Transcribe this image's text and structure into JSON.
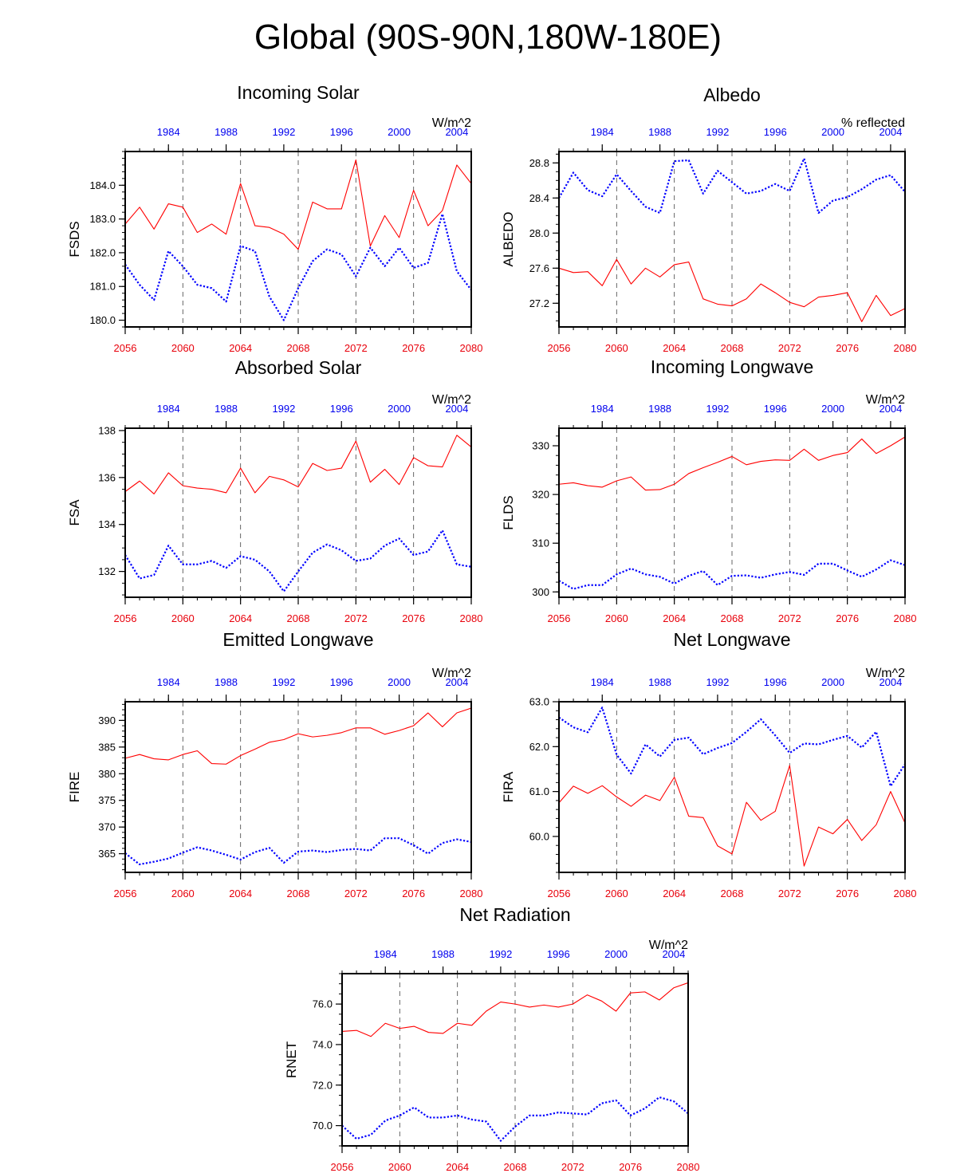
{
  "page": {
    "title": "Global (90S-90N,180W-180E)"
  },
  "style": {
    "case1_color": "#ff0000",
    "case2_color": "#0000ff",
    "bottom_tick_color": "#ff0000",
    "top_tick_color": "#0000ee"
  },
  "chart_data": [
    {
      "id": "incoming-solar",
      "type": "line",
      "title": "Incoming Solar",
      "ylabel": "FSDS",
      "units": "W/m^2",
      "ylim": [
        179.8,
        185.0
      ],
      "yticks": [
        180.0,
        181.0,
        182.0,
        183.0,
        184.0
      ],
      "ytick_labels": [
        "180.0",
        "181.0",
        "182.0",
        "183.0",
        "184.0"
      ],
      "yminor_step": 0.2,
      "grid_x": [
        2060,
        2064,
        2068,
        2072,
        2076
      ],
      "x_bottom": [
        2056,
        2057,
        2058,
        2059,
        2060,
        2061,
        2062,
        2063,
        2064,
        2065,
        2066,
        2067,
        2068,
        2069,
        2070,
        2071,
        2072,
        2073,
        2074,
        2075,
        2076,
        2077,
        2078,
        2079,
        2080
      ],
      "bottom_ticks": [
        2056,
        2060,
        2064,
        2068,
        2072,
        2076,
        2080
      ],
      "top_tick_labels": [
        "1984",
        "1988",
        "1992",
        "1996",
        "2000",
        "2004"
      ],
      "top_tick_positions": [
        2059,
        2063,
        2067,
        2071,
        2075,
        2079
      ],
      "series": [
        {
          "values": [
            182.85,
            183.35,
            182.7,
            183.45,
            183.35,
            182.6,
            182.85,
            182.55,
            184.05,
            182.8,
            182.75,
            182.55,
            182.1,
            183.5,
            183.3,
            183.3,
            184.75,
            182.2,
            183.1,
            182.45,
            183.85,
            182.8,
            183.25,
            184.6,
            184.05
          ]
        },
        {
          "values": [
            181.65,
            181.05,
            180.6,
            182.05,
            181.6,
            181.05,
            180.95,
            180.55,
            182.2,
            182.05,
            180.7,
            180.0,
            180.95,
            181.75,
            182.1,
            181.95,
            181.3,
            182.15,
            181.6,
            182.15,
            181.55,
            181.7,
            183.15,
            181.45,
            180.9
          ]
        }
      ]
    },
    {
      "id": "albedo",
      "type": "line",
      "title": "Albedo",
      "ylabel": "ALBEDO",
      "units": "% reflected",
      "ylim": [
        26.93,
        28.93
      ],
      "yticks": [
        27.2,
        27.6,
        28.0,
        28.4,
        28.8
      ],
      "ytick_labels": [
        "27.2",
        "27.6",
        "28.0",
        "28.4",
        "28.8"
      ],
      "yminor_step": 0.1,
      "grid_x": [
        2060,
        2064,
        2068,
        2072,
        2076
      ],
      "x_bottom": [
        2056,
        2057,
        2058,
        2059,
        2060,
        2061,
        2062,
        2063,
        2064,
        2065,
        2066,
        2067,
        2068,
        2069,
        2070,
        2071,
        2072,
        2073,
        2074,
        2075,
        2076,
        2077,
        2078,
        2079,
        2080
      ],
      "bottom_ticks": [
        2056,
        2060,
        2064,
        2068,
        2072,
        2076,
        2080
      ],
      "top_tick_labels": [
        "1984",
        "1988",
        "1992",
        "1996",
        "2000",
        "2004"
      ],
      "top_tick_positions": [
        2059,
        2063,
        2067,
        2071,
        2075,
        2079
      ],
      "series": [
        {
          "values": [
            27.6,
            27.55,
            27.56,
            27.4,
            27.7,
            27.42,
            27.6,
            27.5,
            27.64,
            27.67,
            27.25,
            27.19,
            27.17,
            27.25,
            27.42,
            27.32,
            27.21,
            27.16,
            27.27,
            27.29,
            27.32,
            26.99,
            27.29,
            27.06,
            27.14
          ]
        },
        {
          "values": [
            28.4,
            28.69,
            28.49,
            28.42,
            28.67,
            28.48,
            28.3,
            28.23,
            28.82,
            28.83,
            28.45,
            28.71,
            28.58,
            28.45,
            28.48,
            28.56,
            28.48,
            28.85,
            28.23,
            28.37,
            28.41,
            28.5,
            28.61,
            28.66,
            28.47
          ]
        }
      ]
    },
    {
      "id": "absorbed-solar",
      "type": "line",
      "title": "Absorbed Solar",
      "ylabel": "FSA",
      "units": "W/m^2",
      "ylim": [
        130.9,
        138.1
      ],
      "yticks": [
        132,
        134,
        136,
        138
      ],
      "ytick_labels": [
        "132",
        "134",
        "136",
        "138"
      ],
      "yminor_step": 0.5,
      "grid_x": [
        2060,
        2064,
        2068,
        2072,
        2076
      ],
      "x_bottom": [
        2056,
        2057,
        2058,
        2059,
        2060,
        2061,
        2062,
        2063,
        2064,
        2065,
        2066,
        2067,
        2068,
        2069,
        2070,
        2071,
        2072,
        2073,
        2074,
        2075,
        2076,
        2077,
        2078,
        2079,
        2080
      ],
      "bottom_ticks": [
        2056,
        2060,
        2064,
        2068,
        2072,
        2076,
        2080
      ],
      "top_tick_labels": [
        "1984",
        "1988",
        "1992",
        "1996",
        "2000",
        "2004"
      ],
      "top_tick_positions": [
        2059,
        2063,
        2067,
        2071,
        2075,
        2079
      ],
      "series": [
        {
          "values": [
            135.4,
            135.85,
            135.3,
            136.2,
            135.65,
            135.55,
            135.5,
            135.35,
            136.4,
            135.35,
            136.05,
            135.9,
            135.6,
            136.6,
            136.3,
            136.4,
            137.55,
            135.8,
            136.35,
            135.7,
            136.85,
            136.5,
            136.45,
            137.8,
            137.3
          ]
        },
        {
          "values": [
            132.7,
            131.7,
            131.85,
            133.1,
            132.3,
            132.3,
            132.45,
            132.15,
            132.65,
            132.5,
            132.0,
            131.15,
            132.0,
            132.8,
            133.15,
            132.9,
            132.45,
            132.55,
            133.1,
            133.4,
            132.7,
            132.85,
            133.75,
            132.3,
            132.2
          ]
        }
      ]
    },
    {
      "id": "incoming-longwave",
      "type": "line",
      "title": "Incoming Longwave",
      "ylabel": "FLDS",
      "units": "W/m^2",
      "ylim": [
        298.9,
        333.6
      ],
      "yticks": [
        300,
        310,
        320,
        330
      ],
      "ytick_labels": [
        "300",
        "310",
        "320",
        "330"
      ],
      "yminor_step": 2,
      "grid_x": [
        2060,
        2064,
        2068,
        2072,
        2076
      ],
      "x_bottom": [
        2056,
        2057,
        2058,
        2059,
        2060,
        2061,
        2062,
        2063,
        2064,
        2065,
        2066,
        2067,
        2068,
        2069,
        2070,
        2071,
        2072,
        2073,
        2074,
        2075,
        2076,
        2077,
        2078,
        2079,
        2080
      ],
      "bottom_ticks": [
        2056,
        2060,
        2064,
        2068,
        2072,
        2076,
        2080
      ],
      "top_tick_labels": [
        "1984",
        "1988",
        "1992",
        "1996",
        "2000",
        "2004"
      ],
      "top_tick_positions": [
        2059,
        2063,
        2067,
        2071,
        2075,
        2079
      ],
      "series": [
        {
          "values": [
            322.1,
            322.4,
            321.8,
            321.5,
            322.8,
            323.6,
            320.9,
            321.0,
            322.1,
            324.3,
            325.5,
            326.6,
            327.8,
            326.1,
            326.8,
            327.1,
            327.0,
            329.3,
            327.0,
            328.0,
            328.6,
            331.4,
            328.4,
            330.0,
            331.8
          ]
        },
        {
          "values": [
            302.3,
            300.6,
            301.4,
            301.4,
            303.6,
            304.8,
            303.6,
            303.1,
            301.7,
            303.3,
            304.3,
            301.4,
            303.3,
            303.4,
            302.9,
            303.6,
            304.1,
            303.5,
            305.8,
            305.8,
            304.4,
            303.1,
            304.6,
            306.5,
            305.5
          ]
        }
      ]
    },
    {
      "id": "emitted-longwave",
      "type": "line",
      "title": "Emitted Longwave",
      "ylabel": "FIRE",
      "units": "W/m^2",
      "ylim": [
        361.5,
        393.5
      ],
      "yticks": [
        365,
        370,
        375,
        380,
        385,
        390
      ],
      "ytick_labels": [
        "365",
        "370",
        "375",
        "380",
        "385",
        "390"
      ],
      "yminor_step": 1,
      "grid_x": [
        2060,
        2064,
        2068,
        2072,
        2076
      ],
      "x_bottom": [
        2056,
        2057,
        2058,
        2059,
        2060,
        2061,
        2062,
        2063,
        2064,
        2065,
        2066,
        2067,
        2068,
        2069,
        2070,
        2071,
        2072,
        2073,
        2074,
        2075,
        2076,
        2077,
        2078,
        2079,
        2080
      ],
      "bottom_ticks": [
        2056,
        2060,
        2064,
        2068,
        2072,
        2076,
        2080
      ],
      "top_tick_labels": [
        "1984",
        "1988",
        "1992",
        "1996",
        "2000",
        "2004"
      ],
      "top_tick_positions": [
        2059,
        2063,
        2067,
        2071,
        2075,
        2079
      ],
      "series": [
        {
          "values": [
            382.9,
            383.6,
            382.8,
            382.6,
            383.6,
            384.3,
            381.9,
            381.8,
            383.4,
            384.6,
            385.9,
            386.4,
            387.5,
            386.9,
            387.2,
            387.7,
            388.6,
            388.6,
            387.4,
            388.1,
            389.0,
            391.4,
            388.8,
            391.4,
            392.3
          ]
        },
        {
          "values": [
            365.1,
            363.0,
            363.5,
            364.1,
            365.2,
            366.2,
            365.6,
            364.8,
            363.9,
            365.3,
            366.1,
            363.3,
            365.4,
            365.6,
            365.3,
            365.7,
            365.9,
            365.6,
            367.9,
            367.9,
            366.6,
            365.0,
            367.0,
            367.7,
            367.2
          ]
        }
      ]
    },
    {
      "id": "net-longwave",
      "type": "line",
      "title": "Net Longwave",
      "ylabel": "FIRA",
      "units": "W/m^2",
      "ylim": [
        59.2,
        63.0
      ],
      "yticks": [
        60.0,
        61.0,
        62.0,
        63.0
      ],
      "ytick_labels": [
        "60.0",
        "61.0",
        "62.0",
        "63.0"
      ],
      "yminor_step": 0.2,
      "grid_x": [
        2060,
        2064,
        2068,
        2072,
        2076
      ],
      "x_bottom": [
        2056,
        2057,
        2058,
        2059,
        2060,
        2061,
        2062,
        2063,
        2064,
        2065,
        2066,
        2067,
        2068,
        2069,
        2070,
        2071,
        2072,
        2073,
        2074,
        2075,
        2076,
        2077,
        2078,
        2079,
        2080
      ],
      "bottom_ticks": [
        2056,
        2060,
        2064,
        2068,
        2072,
        2076,
        2080
      ],
      "top_tick_labels": [
        "1984",
        "1988",
        "1992",
        "1996",
        "2000",
        "2004"
      ],
      "top_tick_positions": [
        2059,
        2063,
        2067,
        2071,
        2075,
        2079
      ],
      "series": [
        {
          "values": [
            60.75,
            61.12,
            60.96,
            61.13,
            60.88,
            60.67,
            60.92,
            60.8,
            61.32,
            60.45,
            60.42,
            59.79,
            59.61,
            60.76,
            60.36,
            60.56,
            61.58,
            59.34,
            60.21,
            60.06,
            60.38,
            59.91,
            60.26,
            61.0,
            60.3
          ]
        },
        {
          "values": [
            62.65,
            62.43,
            62.32,
            62.87,
            61.82,
            61.4,
            62.05,
            61.78,
            62.15,
            62.2,
            61.83,
            61.97,
            62.08,
            62.33,
            62.61,
            62.25,
            61.86,
            62.07,
            62.05,
            62.15,
            62.24,
            61.98,
            62.33,
            61.12,
            61.61
          ]
        }
      ]
    },
    {
      "id": "net-radiation",
      "type": "line",
      "title": "Net Radiation",
      "ylabel": "RNET",
      "units": "W/m^2",
      "ylim": [
        69.0,
        77.5
      ],
      "yticks": [
        70.0,
        72.0,
        74.0,
        76.0
      ],
      "ytick_labels": [
        "70.0",
        "72.0",
        "74.0",
        "76.0"
      ],
      "yminor_step": 0.5,
      "grid_x": [
        2060,
        2064,
        2068,
        2072,
        2076
      ],
      "x_bottom": [
        2056,
        2057,
        2058,
        2059,
        2060,
        2061,
        2062,
        2063,
        2064,
        2065,
        2066,
        2067,
        2068,
        2069,
        2070,
        2071,
        2072,
        2073,
        2074,
        2075,
        2076,
        2077,
        2078,
        2079,
        2080
      ],
      "bottom_ticks": [
        2056,
        2060,
        2064,
        2068,
        2072,
        2076,
        2080
      ],
      "top_tick_labels": [
        "1984",
        "1988",
        "1992",
        "1996",
        "2000",
        "2004"
      ],
      "top_tick_positions": [
        2059,
        2063,
        2067,
        2071,
        2075,
        2079
      ],
      "series": [
        {
          "values": [
            74.65,
            74.7,
            74.4,
            75.05,
            74.8,
            74.9,
            74.6,
            74.55,
            75.05,
            74.95,
            75.65,
            76.1,
            76.0,
            75.85,
            75.95,
            75.85,
            76.0,
            76.45,
            76.15,
            75.65,
            76.55,
            76.6,
            76.2,
            76.8,
            77.05
          ]
        },
        {
          "values": [
            70.0,
            69.35,
            69.55,
            70.25,
            70.5,
            70.9,
            70.4,
            70.4,
            70.5,
            70.3,
            70.2,
            69.25,
            69.95,
            70.5,
            70.5,
            70.65,
            70.6,
            70.55,
            71.1,
            71.25,
            70.5,
            70.85,
            71.4,
            71.2,
            70.6
          ]
        }
      ]
    }
  ]
}
